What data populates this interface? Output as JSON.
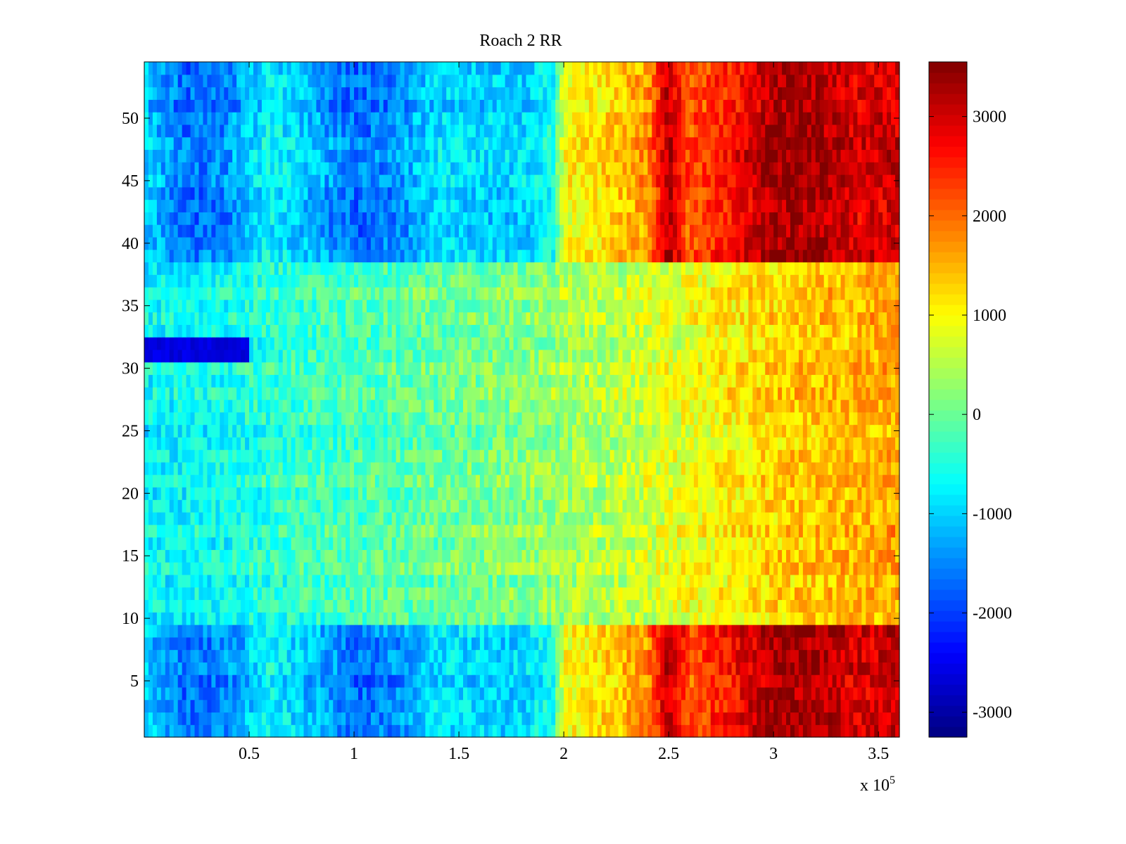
{
  "chart_data": {
    "type": "heatmap",
    "title": "Roach 2 RR",
    "xlabel": "",
    "ylabel": "",
    "colormap": "jet",
    "x_exponent_label": "x 10",
    "x_exponent_power": "5",
    "x_range": [
      0,
      360000
    ],
    "y_range": [
      0.5,
      54.5
    ],
    "rows": 54,
    "x_ticks": [
      {
        "value": 50000,
        "label": "0.5"
      },
      {
        "value": 100000,
        "label": "1"
      },
      {
        "value": 150000,
        "label": "1.5"
      },
      {
        "value": 200000,
        "label": "2"
      },
      {
        "value": 250000,
        "label": "2.5"
      },
      {
        "value": 300000,
        "label": "3"
      },
      {
        "value": 350000,
        "label": "3.5"
      }
    ],
    "y_ticks": [
      {
        "value": 5,
        "label": "5"
      },
      {
        "value": 10,
        "label": "10"
      },
      {
        "value": 15,
        "label": "15"
      },
      {
        "value": 20,
        "label": "20"
      },
      {
        "value": 25,
        "label": "25"
      },
      {
        "value": 30,
        "label": "30"
      },
      {
        "value": 35,
        "label": "35"
      },
      {
        "value": 40,
        "label": "40"
      },
      {
        "value": 45,
        "label": "45"
      },
      {
        "value": 50,
        "label": "50"
      }
    ],
    "colorbar": {
      "range": [
        -3250,
        3550
      ],
      "ticks": [
        {
          "value": 3000,
          "label": "3000"
        },
        {
          "value": 2000,
          "label": "2000"
        },
        {
          "value": 1000,
          "label": "1000"
        },
        {
          "value": 0,
          "label": "0"
        },
        {
          "value": -1000,
          "label": "-1000"
        },
        {
          "value": -2000,
          "label": "-2000"
        },
        {
          "value": -3000,
          "label": "-3000"
        }
      ]
    },
    "column_profile_x": [
      0,
      20000,
      40000,
      60000,
      80000,
      100000,
      120000,
      140000,
      160000,
      180000,
      195000,
      200000,
      220000,
      240000,
      250000,
      260000,
      280000,
      300000,
      320000,
      340000,
      360000
    ],
    "group_a_rows_1_to_9_and_39_to_54": [
      -1000,
      -1700,
      -1500,
      -700,
      -1200,
      -1700,
      -1500,
      -900,
      -1000,
      -1000,
      -600,
      900,
      1200,
      1700,
      3200,
      2100,
      2600,
      3300,
      3300,
      2900,
      3000
    ],
    "group_b_rows_10_to_38": [
      -700,
      -700,
      -600,
      -400,
      -300,
      -200,
      -100,
      0,
      100,
      200,
      300,
      400,
      500,
      700,
      800,
      900,
      1100,
      1300,
      1400,
      1500,
      1600
    ],
    "row_31_32_low_band": {
      "rows": [
        31,
        32
      ],
      "x_end": 50000,
      "value": -2600
    }
  }
}
